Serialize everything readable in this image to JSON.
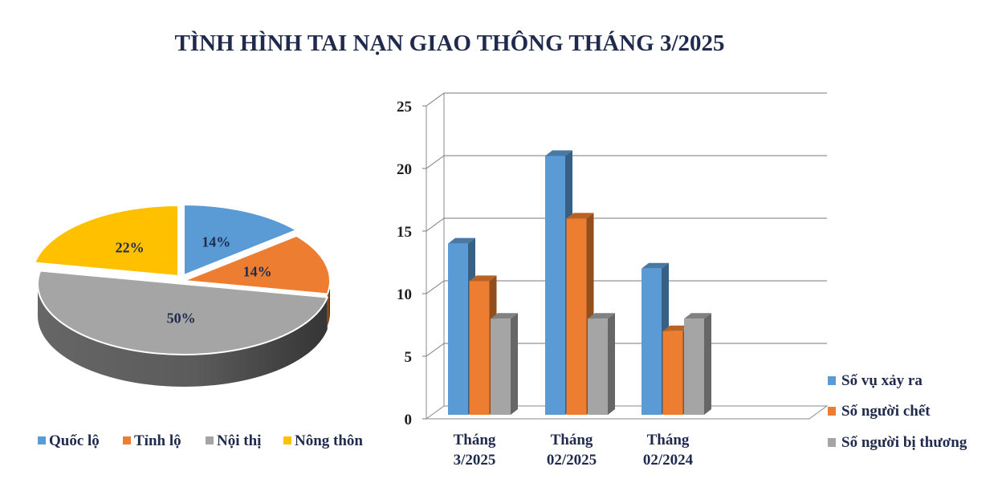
{
  "title": "TÌNH HÌNH TAI NẠN GIAO THÔNG THÁNG 3/2025",
  "chart_data": [
    {
      "type": "pie",
      "style": "3d",
      "categories": [
        "Quốc lộ",
        "Tỉnh lộ",
        "Nội thị",
        "Nông thôn"
      ],
      "values": [
        14,
        14,
        50,
        22
      ],
      "labels": [
        "14%",
        "14%",
        "50%",
        "22%"
      ],
      "colors": [
        "#5b9bd5",
        "#ed7d31",
        "#a5a5a5",
        "#ffc000"
      ],
      "legend_position": "bottom"
    },
    {
      "type": "bar",
      "style": "3d-clustered",
      "categories": [
        [
          "Tháng",
          "3/2025"
        ],
        [
          "Tháng",
          "02/2025"
        ],
        [
          "Tháng",
          "02/2024"
        ]
      ],
      "series": [
        {
          "name": "Số vụ xảy ra",
          "values": [
            14,
            21,
            12
          ],
          "color": "#5b9bd5"
        },
        {
          "name": "Số người chết",
          "values": [
            11,
            16,
            7
          ],
          "color": "#ed7d31"
        },
        {
          "name": "Số người bị thương",
          "values": [
            8,
            8,
            8
          ],
          "color": "#a5a5a5"
        }
      ],
      "ylim": [
        0,
        25
      ],
      "yticks": [
        "0",
        "5",
        "10",
        "15",
        "20",
        "25"
      ],
      "grid": true,
      "legend_position": "right"
    }
  ]
}
